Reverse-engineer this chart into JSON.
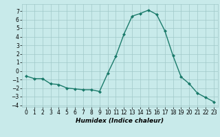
{
  "x": [
    0,
    1,
    2,
    3,
    4,
    5,
    6,
    7,
    8,
    9,
    10,
    11,
    12,
    13,
    14,
    15,
    16,
    17,
    18,
    19,
    20,
    21,
    22,
    23
  ],
  "y": [
    -0.6,
    -0.9,
    -0.9,
    -1.5,
    -1.6,
    -2.0,
    -2.1,
    -2.2,
    -2.2,
    -2.4,
    -0.3,
    1.7,
    4.3,
    6.4,
    6.7,
    7.1,
    6.6,
    4.7,
    1.8,
    -0.7,
    -1.5,
    -2.6,
    -3.1,
    -3.6
  ],
  "line_color": "#1a7a6a",
  "marker": "D",
  "marker_size": 2.0,
  "bg_color": "#c8eaea",
  "grid_color": "#a0c8c8",
  "xlabel": "Humidex (Indice chaleur)",
  "xlim": [
    -0.5,
    23.5
  ],
  "ylim": [
    -4.2,
    7.8
  ],
  "yticks": [
    -4,
    -3,
    -2,
    -1,
    0,
    1,
    2,
    3,
    4,
    5,
    6,
    7
  ],
  "xticks": [
    0,
    1,
    2,
    3,
    4,
    5,
    6,
    7,
    8,
    9,
    10,
    11,
    12,
    13,
    14,
    15,
    16,
    17,
    18,
    19,
    20,
    21,
    22,
    23
  ],
  "tick_fontsize": 5.5,
  "xlabel_fontsize": 6.5,
  "linewidth": 1.0
}
